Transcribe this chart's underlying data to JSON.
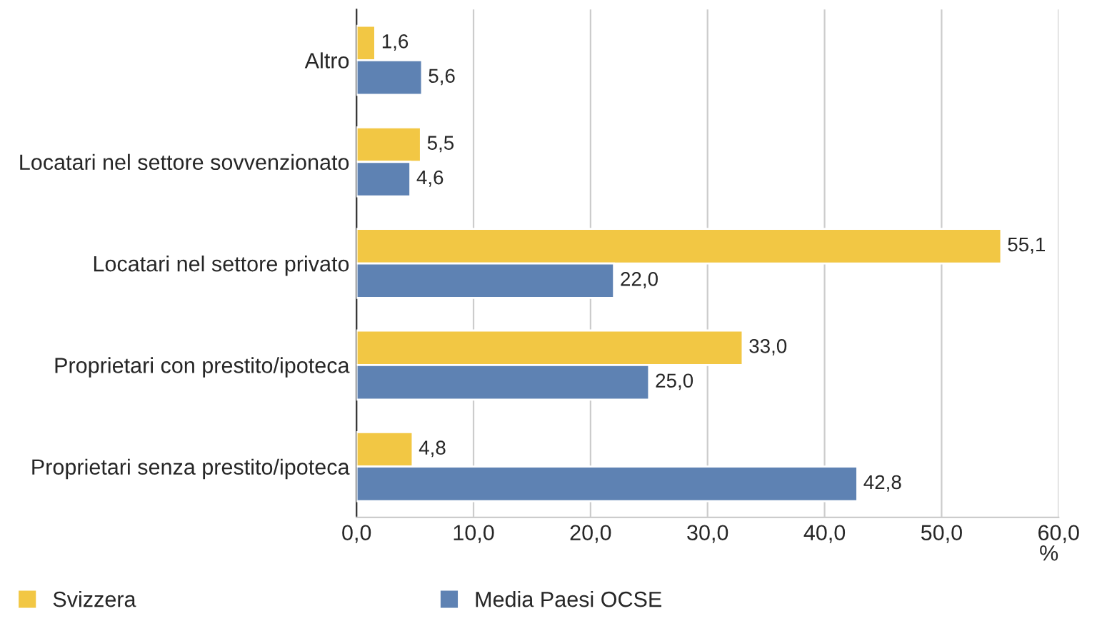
{
  "chart_data": {
    "type": "bar",
    "orientation": "horizontal",
    "xlabel": "%",
    "categories": [
      "Altro",
      "Locatari nel settore sovvenzionato",
      "Locatari nel settore privato",
      "Proprietari con prestito/ipoteca",
      "Proprietari senza prestito/ipoteca"
    ],
    "series": [
      {
        "name": "Svizzera",
        "color": "#f2c744",
        "values": [
          1.6,
          5.5,
          55.1,
          33.0,
          4.8
        ],
        "value_labels": [
          "1,6",
          "5,5",
          "55,1",
          "33,0",
          "4,8"
        ]
      },
      {
        "name": "Media Paesi OCSE",
        "color": "#5e82b3",
        "values": [
          5.6,
          4.6,
          22.0,
          25.0,
          42.8
        ],
        "value_labels": [
          "5,6",
          "4,6",
          "22,0",
          "25,0",
          "42,8"
        ]
      }
    ],
    "xlim": [
      0,
      60
    ],
    "xticks": [
      {
        "value": 0,
        "label": "0,0"
      },
      {
        "value": 10,
        "label": "10,0"
      },
      {
        "value": 20,
        "label": "20,0"
      },
      {
        "value": 30,
        "label": "30,0"
      },
      {
        "value": 40,
        "label": "40,0"
      },
      {
        "value": 50,
        "label": "50,0"
      },
      {
        "value": 60,
        "label": "60,0"
      }
    ],
    "grid": "x",
    "legend": "bottom left"
  }
}
